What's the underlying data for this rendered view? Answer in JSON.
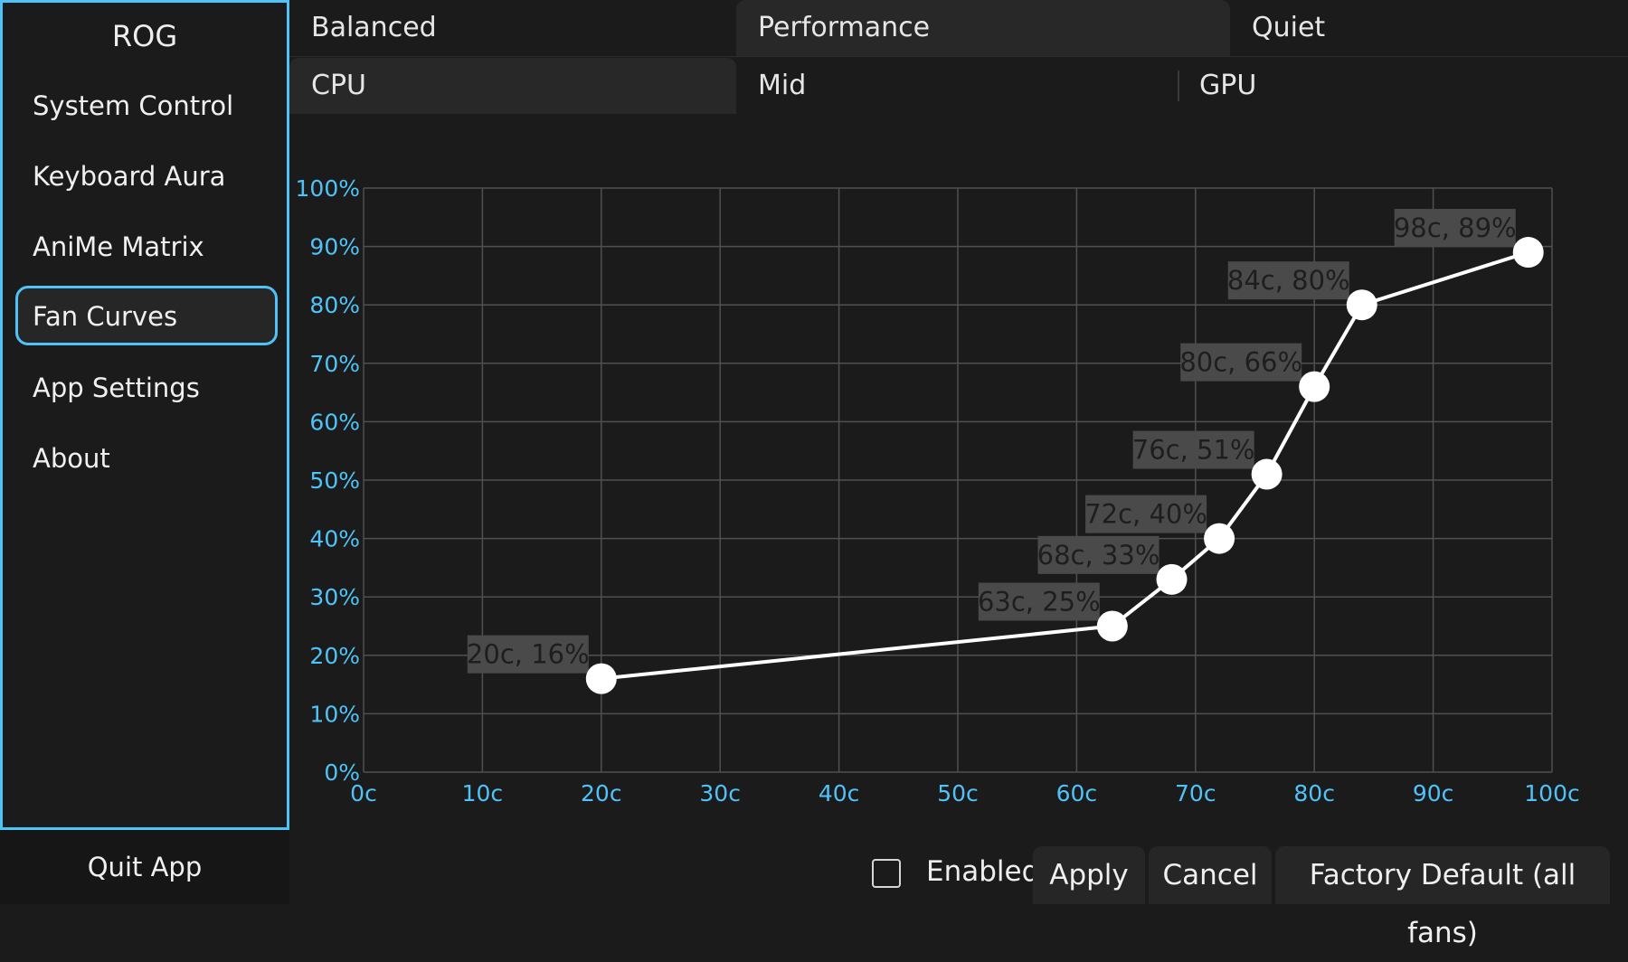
{
  "sidebar": {
    "brand": "ROG",
    "items": [
      {
        "label": "System Control"
      },
      {
        "label": "Keyboard Aura"
      },
      {
        "label": "AniMe Matrix"
      },
      {
        "label": "Fan Curves",
        "active": true
      },
      {
        "label": "App Settings"
      },
      {
        "label": "About"
      }
    ],
    "quit_label": "Quit App"
  },
  "profile_tabs": [
    "Balanced",
    "Performance",
    "Quiet"
  ],
  "selected_profile": "Performance",
  "fan_tabs": [
    "CPU",
    "Mid",
    "GPU"
  ],
  "selected_fan": "CPU",
  "chart_data": {
    "type": "line",
    "x_tick_labels": [
      "0c",
      "10c",
      "20c",
      "30c",
      "40c",
      "50c",
      "60c",
      "70c",
      "80c",
      "90c",
      "100c"
    ],
    "y_tick_labels": [
      "0%",
      "10%",
      "20%",
      "30%",
      "40%",
      "50%",
      "60%",
      "70%",
      "80%",
      "90%",
      "100%"
    ],
    "xlim": [
      0,
      100
    ],
    "ylim": [
      0,
      100
    ],
    "grid": true,
    "points": [
      {
        "x": 20,
        "y": 16,
        "label": "20c, 16%"
      },
      {
        "x": 63,
        "y": 25,
        "label": "63c, 25%"
      },
      {
        "x": 68,
        "y": 33,
        "label": "68c, 33%"
      },
      {
        "x": 72,
        "y": 40,
        "label": "72c, 40%"
      },
      {
        "x": 76,
        "y": 51,
        "label": "76c, 51%"
      },
      {
        "x": 80,
        "y": 66,
        "label": "80c, 66%"
      },
      {
        "x": 84,
        "y": 80,
        "label": "84c, 80%"
      },
      {
        "x": 98,
        "y": 89,
        "label": "98c, 89%"
      }
    ],
    "colors": {
      "axis_text": "#4fc3f7",
      "line": "#ffffff",
      "grid": "#505050",
      "label_bg": "#4a4a4a",
      "label_text": "#1e1e1e"
    }
  },
  "footer": {
    "enabled_label": "Enabled",
    "enabled_checked": false,
    "apply_label": "Apply",
    "cancel_label": "Cancel",
    "factory_label": "Factory Default (all fans)"
  }
}
